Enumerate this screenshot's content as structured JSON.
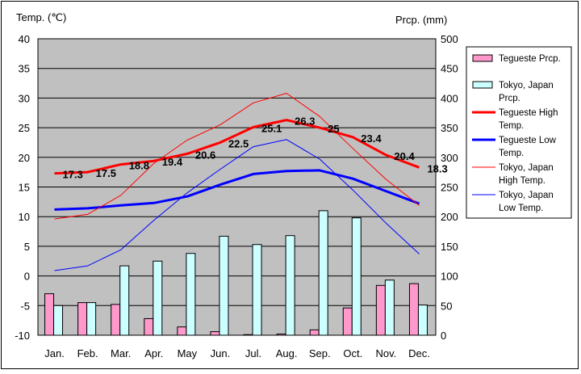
{
  "chart_data": {
    "type": "bar+line",
    "categories": [
      "Jan.",
      "Feb.",
      "Mar.",
      "Apr.",
      "May",
      "Jun.",
      "Jul.",
      "Aug.",
      "Sep.",
      "Oct.",
      "Nov.",
      "Dec."
    ],
    "y_left_label": "Temp. (℃)",
    "y_right_label": "Prcp. (mm)",
    "y_left_lim": [
      -10,
      40
    ],
    "y_left_ticks": [
      -10,
      -5,
      0,
      5,
      10,
      15,
      20,
      25,
      30,
      35,
      40
    ],
    "y_right_lim": [
      0,
      500
    ],
    "y_right_ticks": [
      0,
      50,
      100,
      150,
      200,
      250,
      300,
      350,
      400,
      450,
      500
    ],
    "grid": true,
    "legend_position": "right",
    "bars": [
      {
        "name": "Tegueste Prcp.",
        "color": "#ff99cc",
        "values": [
          70,
          55,
          52,
          28,
          14,
          6,
          1,
          2,
          9,
          46,
          84,
          87
        ]
      },
      {
        "name": "Tokyo, Japan Prcp.",
        "color": "#ccffff",
        "values": [
          50,
          55,
          117,
          125,
          138,
          167,
          153,
          168,
          210,
          198,
          93,
          51
        ]
      }
    ],
    "lines": [
      {
        "name": "Tegueste High Temp.",
        "color": "#ff0000",
        "width": 3,
        "values": [
          17.3,
          17.5,
          18.8,
          19.4,
          20.6,
          22.5,
          25.1,
          26.3,
          25,
          23.4,
          20.4,
          18.3
        ],
        "labels": [
          "17.3",
          "17.5",
          "18.8",
          "19.4",
          "20.6",
          "22.5",
          "25.1",
          "26.3",
          "25",
          "23.4",
          "20.4",
          "18.3"
        ]
      },
      {
        "name": "Tegueste Low Temp.",
        "color": "#0000ff",
        "width": 3,
        "values": [
          11.2,
          11.4,
          11.9,
          12.3,
          13.4,
          15.4,
          17.2,
          17.7,
          17.8,
          16.4,
          14.3,
          12.2
        ]
      },
      {
        "name": "Tokyo, Japan High Temp.",
        "color": "#ff0000",
        "width": 1,
        "values": [
          9.6,
          10.4,
          13.6,
          19.0,
          22.9,
          25.5,
          29.2,
          30.8,
          26.9,
          21.5,
          16.3,
          11.9
        ]
      },
      {
        "name": "Tokyo, Japan Low Temp.",
        "color": "#0000ff",
        "width": 1,
        "values": [
          0.9,
          1.7,
          4.4,
          9.4,
          14.0,
          18.0,
          21.8,
          23.0,
          19.7,
          14.5,
          8.9,
          3.7
        ]
      }
    ]
  },
  "legend": [
    {
      "kind": "bar",
      "color": "#ff99cc",
      "lines": [
        "Tegueste Prcp."
      ]
    },
    {
      "kind": "bar",
      "color": "#ccffff",
      "lines": [
        "Tokyo, Japan",
        "Prcp."
      ]
    },
    {
      "kind": "line",
      "color": "#ff0000",
      "width": 3,
      "lines": [
        "Tegueste High",
        "Temp."
      ]
    },
    {
      "kind": "line",
      "color": "#0000ff",
      "width": 3,
      "lines": [
        "Tegueste Low",
        "Temp."
      ]
    },
    {
      "kind": "line",
      "color": "#ff0000",
      "width": 1,
      "lines": [
        "Tokyo, Japan",
        "High Temp."
      ]
    },
    {
      "kind": "line",
      "color": "#0000ff",
      "width": 1,
      "lines": [
        "Tokyo, Japan",
        "Low Temp."
      ]
    }
  ],
  "colors": {
    "plot_background": "#c0c0c0",
    "grid": "#000000"
  }
}
